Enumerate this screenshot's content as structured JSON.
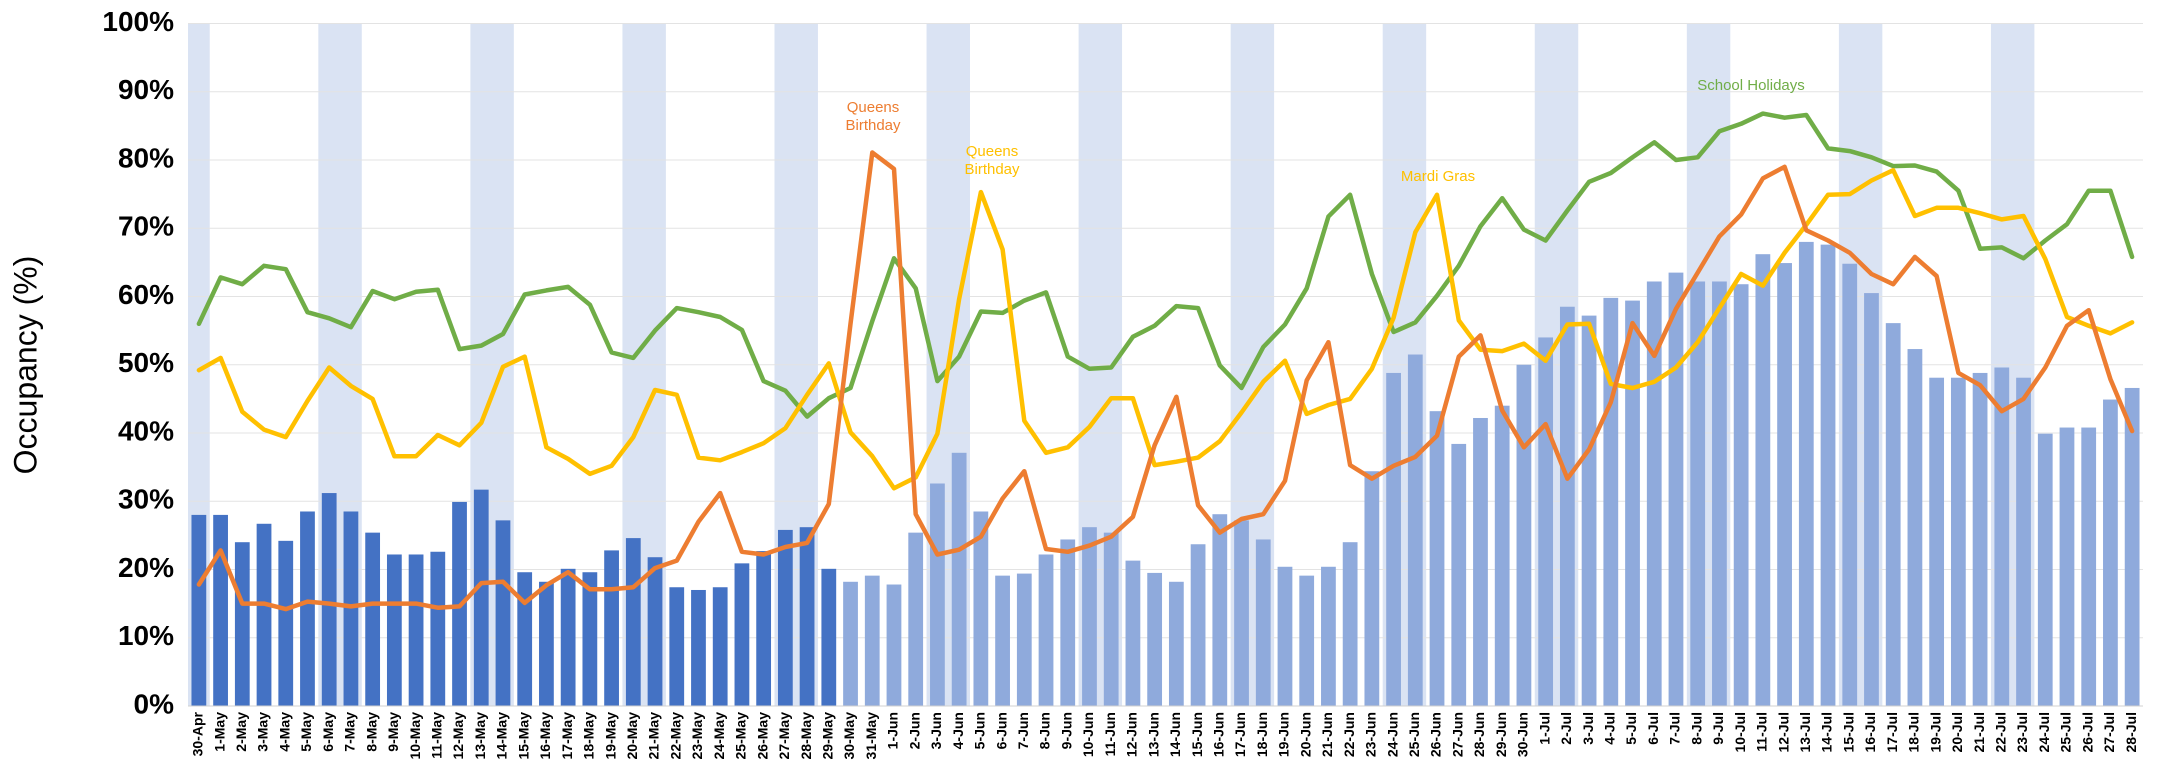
{
  "chart_data": {
    "type": "bar",
    "y_label": "Occupancy (%)",
    "ylim": [
      0,
      100
    ],
    "yticks": [
      {
        "value": 0,
        "label": "0%"
      },
      {
        "value": 10,
        "label": "10%"
      },
      {
        "value": 20,
        "label": "20%"
      },
      {
        "value": 30,
        "label": "30%"
      },
      {
        "value": 40,
        "label": "40%"
      },
      {
        "value": 50,
        "label": "50%"
      },
      {
        "value": 60,
        "label": "60%"
      },
      {
        "value": 70,
        "label": "70%"
      },
      {
        "value": 80,
        "label": "80%"
      },
      {
        "value": 90,
        "label": "90%"
      },
      {
        "value": 100,
        "label": "100%"
      }
    ],
    "grid": true,
    "band_color": "#dae3f3",
    "bands": [
      [
        0,
        0
      ],
      [
        6,
        7
      ],
      [
        13,
        14
      ],
      [
        20,
        21
      ],
      [
        27,
        28
      ],
      [
        34,
        35
      ],
      [
        41,
        42
      ],
      [
        48,
        49
      ],
      [
        55,
        56
      ],
      [
        62,
        63
      ],
      [
        69,
        70
      ],
      [
        76,
        77
      ],
      [
        83,
        84
      ]
    ],
    "categories": [
      "30-Apr",
      "1-May",
      "2-May",
      "3-May",
      "4-May",
      "5-May",
      "6-May",
      "7-May",
      "8-May",
      "9-May",
      "10-May",
      "11-May",
      "12-May",
      "13-May",
      "14-May",
      "15-May",
      "16-May",
      "17-May",
      "18-May",
      "19-May",
      "20-May",
      "21-May",
      "22-May",
      "23-May",
      "24-May",
      "25-May",
      "26-May",
      "27-May",
      "28-May",
      "29-May",
      "30-May",
      "31-May",
      "1-Jun",
      "2-Jun",
      "3-Jun",
      "4-Jun",
      "5-Jun",
      "6-Jun",
      "7-Jun",
      "8-Jun",
      "9-Jun",
      "10-Jun",
      "11-Jun",
      "12-Jun",
      "13-Jun",
      "14-Jun",
      "15-Jun",
      "16-Jun",
      "17-Jun",
      "18-Jun",
      "19-Jun",
      "20-Jun",
      "21-Jun",
      "22-Jun",
      "23-Jun",
      "24-Jun",
      "25-Jun",
      "26-Jun",
      "27-Jun",
      "28-Jun",
      "29-Jun",
      "30-Jun",
      "1-Jul",
      "2-Jul",
      "3-Jul",
      "4-Jul",
      "5-Jul",
      "6-Jul",
      "7-Jul",
      "8-Jul",
      "9-Jul",
      "10-Jul",
      "11-Jul",
      "12-Jul",
      "13-Jul",
      "14-Jul",
      "15-Jul",
      "16-Jul",
      "17-Jul",
      "18-Jul",
      "19-Jul",
      "20-Jul",
      "21-Jul",
      "22-Jul",
      "23-Jul",
      "24-Jul",
      "25-Jul",
      "26-Jul",
      "27-Jul",
      "28-Jul"
    ],
    "series": [
      {
        "type": "bar",
        "colors": [
          "#4472c4",
          "#4472c4",
          "#4472c4",
          "#4472c4",
          "#4472c4",
          "#4472c4",
          "#4472c4",
          "#4472c4",
          "#4472c4",
          "#4472c4",
          "#4472c4",
          "#4472c4",
          "#4472c4",
          "#4472c4",
          "#4472c4",
          "#4472c4",
          "#4472c4",
          "#4472c4",
          "#4472c4",
          "#4472c4",
          "#4472c4",
          "#4472c4",
          "#4472c4",
          "#4472c4",
          "#4472c4",
          "#4472c4",
          "#4472c4",
          "#4472c4",
          "#4472c4",
          "#4472c4",
          "#8faadc",
          "#8faadc",
          "#8faadc",
          "#8faadc",
          "#8faadc",
          "#8faadc",
          "#8faadc",
          "#8faadc",
          "#8faadc",
          "#8faadc",
          "#8faadc",
          "#8faadc",
          "#8faadc",
          "#8faadc",
          "#8faadc",
          "#8faadc",
          "#8faadc",
          "#8faadc",
          "#8faadc",
          "#8faadc",
          "#8faadc",
          "#8faadc",
          "#8faadc",
          "#8faadc",
          "#8faadc",
          "#8faadc",
          "#8faadc",
          "#8faadc",
          "#8faadc",
          "#8faadc",
          "#8faadc",
          "#8faadc",
          "#8faadc",
          "#8faadc",
          "#8faadc",
          "#8faadc",
          "#8faadc",
          "#8faadc",
          "#8faadc",
          "#8faadc",
          "#8faadc",
          "#8faadc",
          "#8faadc",
          "#8faadc",
          "#8faadc",
          "#8faadc",
          "#8faadc",
          "#8faadc",
          "#8faadc",
          "#8faadc",
          "#8faadc",
          "#8faadc",
          "#8faadc",
          "#8faadc",
          "#8faadc",
          "#8faadc",
          "#8faadc",
          "#8faadc",
          "#8faadc",
          "#8faadc"
        ],
        "values": [
          28,
          28,
          24,
          26.7,
          24.2,
          28.5,
          31.2,
          28.5,
          25.4,
          22.2,
          22.2,
          22.6,
          29.9,
          31.7,
          27.2,
          19.6,
          18.2,
          20.1,
          19.6,
          22.8,
          24.6,
          21.8,
          17.4,
          17,
          17.4,
          20.9,
          22.7,
          25.8,
          26.2,
          20.1,
          18.2,
          19.1,
          17.8,
          25.4,
          32.6,
          37.1,
          28.5,
          19.1,
          19.4,
          22.2,
          24.4,
          26.2,
          25.4,
          21.3,
          19.5,
          18.2,
          23.7,
          28.1,
          27.2,
          24.4,
          20.4,
          19.1,
          20.4,
          24,
          34.4,
          48.8,
          51.5,
          43.2,
          38.4,
          42.2,
          44,
          50,
          54,
          58.5,
          57.2,
          59.8,
          59.4,
          62.2,
          63.5,
          62.2,
          62.2,
          61.8,
          66.2,
          64.9,
          68,
          67.6,
          64.8,
          60.5,
          56.1,
          52.3,
          48.1,
          48.1,
          48.8,
          49.6,
          48.1,
          39.9,
          40.8,
          40.8,
          44.9,
          46.6
        ]
      },
      {
        "type": "line",
        "color": "#70ad47",
        "values": [
          56,
          62.8,
          61.8,
          64.5,
          64,
          57.7,
          56.8,
          55.5,
          60.8,
          59.6,
          60.7,
          61,
          52.3,
          52.8,
          54.5,
          60.3,
          60.9,
          61.4,
          58.8,
          51.8,
          51,
          55,
          58.3,
          57.7,
          57,
          55.1,
          47.6,
          46.2,
          42.4,
          45.1,
          46.6,
          56.4,
          65.6,
          61.2,
          47.6,
          51.2,
          57.8,
          57.6,
          59.4,
          60.6,
          51.2,
          49.4,
          49.6,
          54.1,
          55.7,
          58.6,
          58.3,
          49.9,
          46.6,
          52.6,
          55.9,
          61.2,
          71.7,
          74.9,
          63.3,
          54.8,
          56.2,
          60.1,
          64.5,
          70.3,
          74.4,
          69.8,
          68.2,
          72.6,
          76.8,
          78.1,
          80.4,
          82.6,
          80,
          80.4,
          84.2,
          85.3,
          86.8,
          86.2,
          86.6,
          81.7,
          81.3,
          80.4,
          79.1,
          79.2,
          78.3,
          75.5,
          67,
          67.2,
          65.6,
          68.2,
          70.6,
          75.5,
          75.5,
          65.8
        ]
      },
      {
        "type": "line",
        "color": "#ffc000",
        "values": [
          49.2,
          51,
          43.1,
          40.5,
          39.4,
          44.7,
          49.6,
          46.9,
          45,
          36.6,
          36.6,
          39.7,
          38.2,
          41.5,
          49.7,
          51.2,
          37.9,
          36.2,
          34,
          35.2,
          39.4,
          46.3,
          45.6,
          36.4,
          36,
          37.2,
          38.5,
          40.7,
          45.6,
          50.2,
          40.1,
          36.6,
          31.9,
          33.5,
          39.9,
          59.6,
          75.3,
          66.9,
          41.8,
          37.1,
          37.9,
          40.9,
          45.1,
          45.1,
          35.3,
          35.8,
          36.4,
          38.8,
          43,
          47.5,
          50.6,
          42.8,
          44.1,
          45,
          49.4,
          56.9,
          69.4,
          74.9,
          56.5,
          52.2,
          52,
          53.1,
          50.6,
          55.9,
          56,
          47.2,
          46.6,
          47.5,
          49.6,
          53.3,
          58.3,
          63.3,
          61.6,
          66.4,
          70.5,
          74.9,
          75,
          77,
          78.5,
          71.8,
          73,
          73,
          72.2,
          71.3,
          71.8,
          65.5,
          57,
          55.7,
          54.6,
          56.2
        ]
      },
      {
        "type": "line",
        "color": "#ed7d31",
        "values": [
          17.8,
          22.8,
          15,
          15,
          14.2,
          15.3,
          15,
          14.6,
          15,
          15,
          15,
          14.4,
          14.6,
          18,
          18.2,
          15.1,
          17.7,
          19.6,
          17.1,
          17.1,
          17.4,
          20.2,
          21.3,
          27,
          31.2,
          22.6,
          22.2,
          23.3,
          23.9,
          29.6,
          56,
          81.1,
          78.7,
          28.1,
          22.2,
          22.9,
          24.8,
          30.4,
          34.4,
          23,
          22.6,
          23.5,
          24.8,
          27.7,
          38.2,
          45.3,
          29.4,
          25.4,
          27.4,
          28.1,
          33,
          47.7,
          53.3,
          35.3,
          33.3,
          35.2,
          36.5,
          39.6,
          51.2,
          54.3,
          43.3,
          37.9,
          41.3,
          33.3,
          37.6,
          44.5,
          56.1,
          51.3,
          58.2,
          63.5,
          68.8,
          72,
          77.3,
          79,
          69.7,
          68.2,
          66.4,
          63.3,
          61.8,
          65.8,
          63,
          48.8,
          47,
          43.2,
          45,
          49.6,
          55.7,
          58,
          47.9,
          40.3
        ]
      }
    ],
    "annotations": [
      {
        "lines": [
          "Queens",
          "Birthday"
        ],
        "color": "#ed7d31"
      },
      {
        "lines": [
          "Queens",
          "Birthday"
        ],
        "color": "#ffc000"
      },
      {
        "lines": [
          "Mardi Gras"
        ],
        "color": "#ffc000"
      },
      {
        "lines": [
          "School Holidays"
        ],
        "color": "#70ad47"
      }
    ]
  }
}
